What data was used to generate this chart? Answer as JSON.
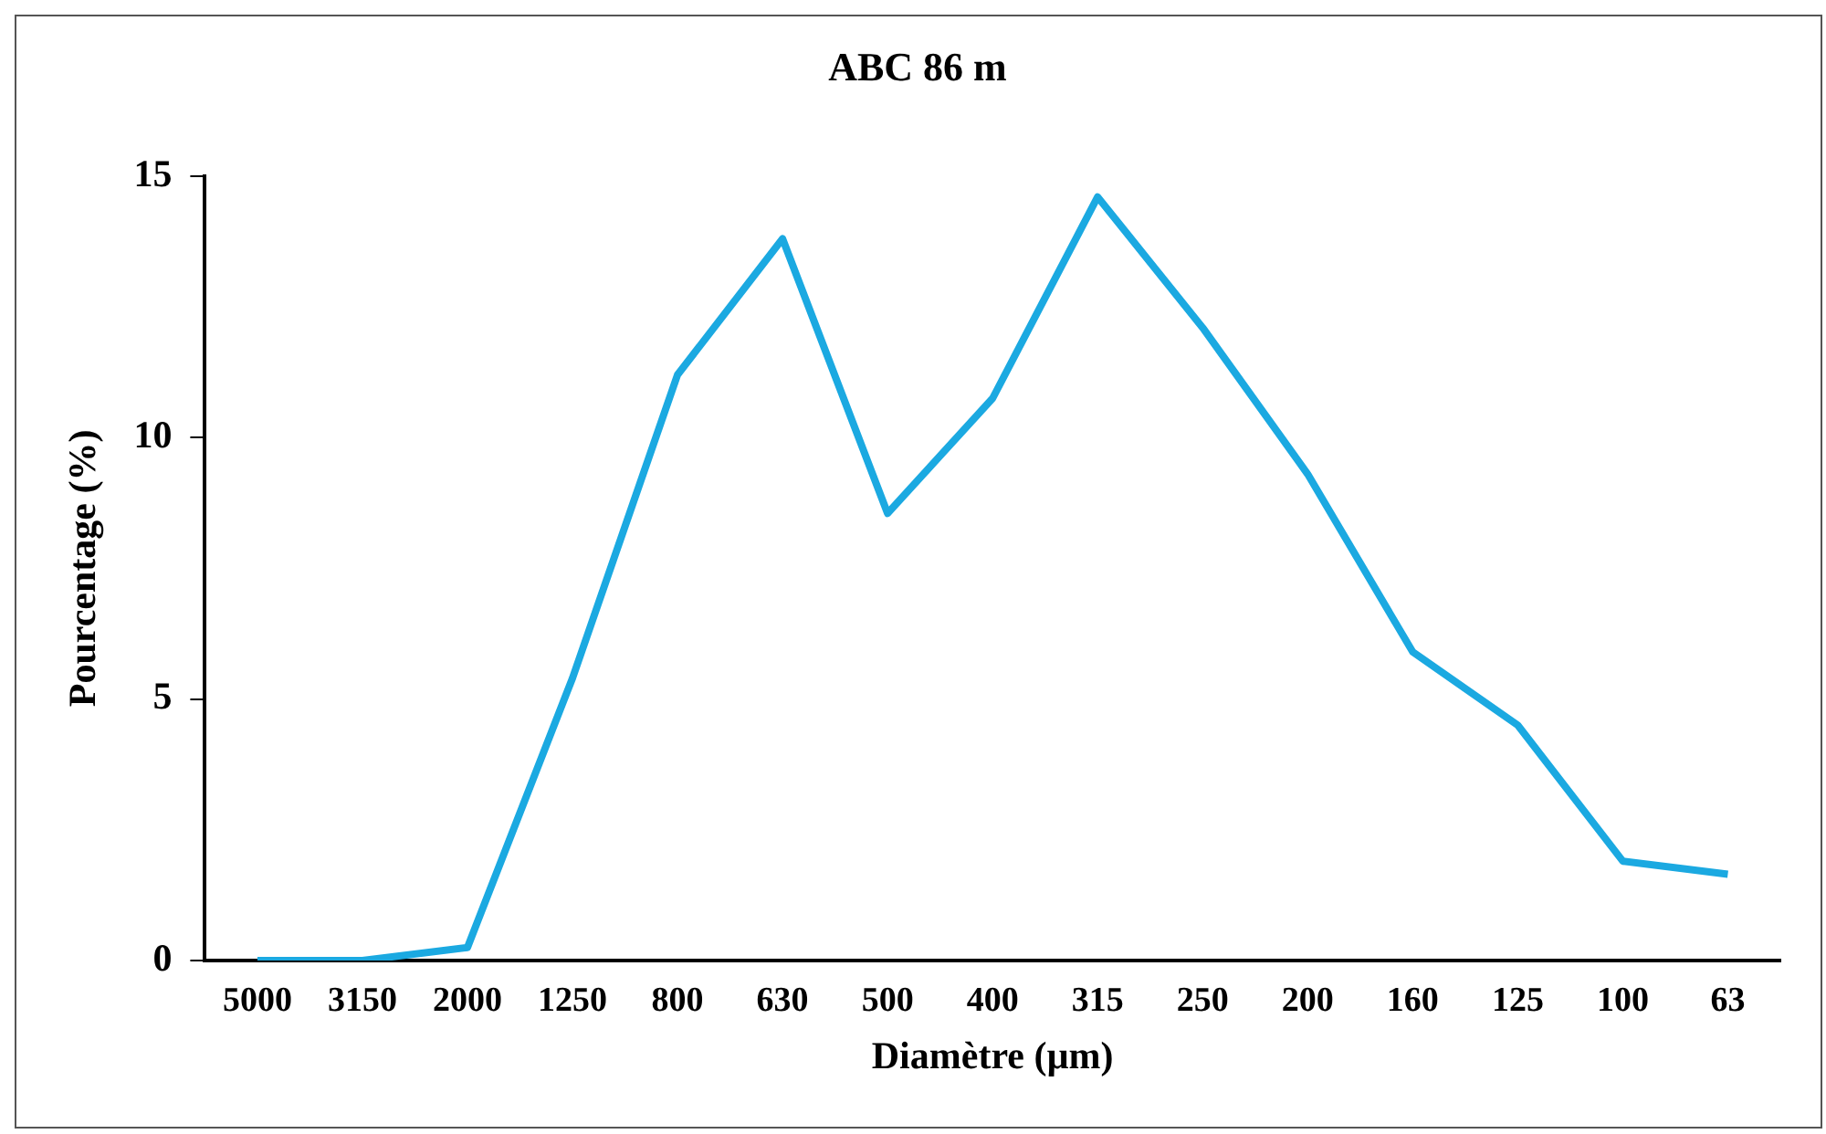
{
  "chart_data": {
    "type": "line",
    "title": "ABC 86 m",
    "xlabel": "Diamètre (µm)",
    "ylabel": "Pourcentage (%)",
    "categories": [
      "5000",
      "3150",
      "2000",
      "1250",
      "800",
      "630",
      "500",
      "400",
      "315",
      "250",
      "200",
      "160",
      "125",
      "100",
      "63"
    ],
    "series": [
      {
        "color": "#1ba9e1",
        "values": [
          0,
          0,
          0.25,
          5.4,
          11.2,
          13.8,
          8.55,
          10.75,
          14.6,
          12.1,
          9.3,
          5.9,
          4.5,
          1.9,
          1.65
        ]
      }
    ],
    "ylim": [
      0,
      15
    ],
    "yticks": [
      0,
      5,
      10,
      15
    ],
    "grid": false,
    "legend": false,
    "marker": "none",
    "line_style": "solid"
  }
}
